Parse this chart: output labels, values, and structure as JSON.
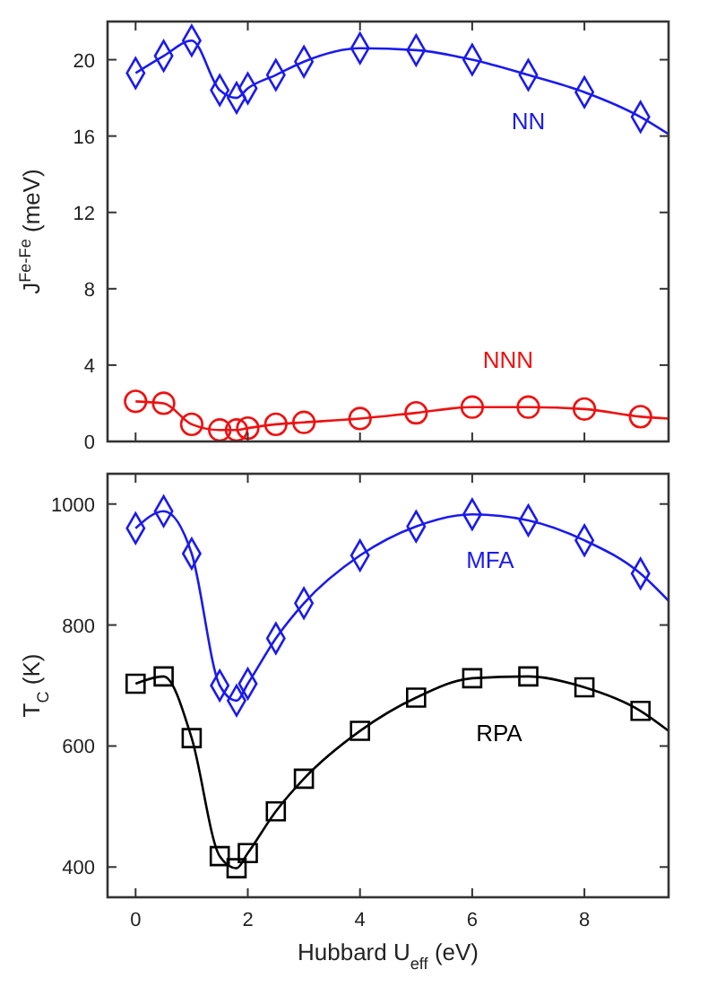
{
  "chart_data": [
    {
      "type": "scatter",
      "ylabel": "J$^{Fe-Fe}$ (meV)",
      "x": [
        0,
        0.5,
        1,
        1.5,
        1.8,
        2,
        2.5,
        3,
        4,
        5,
        6,
        7,
        8,
        9
      ],
      "xlim": [
        -0.5,
        9.5
      ],
      "xticks": [
        0,
        2,
        4,
        6,
        8
      ],
      "ylim": [
        0,
        22
      ],
      "yticks": [
        0,
        4,
        8,
        12,
        16,
        20
      ],
      "tick_labels": "y",
      "grid": false,
      "series": [
        {
          "type": "line",
          "marker": "none",
          "color": "#1a1aee",
          "x": [
            0,
            0.5,
            1,
            1.5,
            1.8,
            2,
            2.5,
            3,
            4,
            5,
            6,
            7,
            8,
            9,
            9.5
          ],
          "values": [
            19.3,
            20.2,
            21.0,
            18.4,
            18.0,
            18.5,
            19.2,
            19.9,
            20.6,
            20.5,
            20.0,
            19.2,
            18.3,
            17.0,
            16.1
          ]
        },
        {
          "marker": "diamond",
          "name": "NN",
          "color": "#1a1aee",
          "values": [
            19.3,
            20.2,
            21.0,
            18.4,
            18.0,
            18.5,
            19.2,
            19.9,
            20.6,
            20.5,
            20.0,
            19.2,
            18.3,
            17.0
          ]
        },
        {
          "type": "line",
          "marker": "none",
          "color": "#ee1111",
          "x": [
            0,
            0.5,
            1,
            1.5,
            1.8,
            2,
            2.5,
            3,
            4,
            5,
            6,
            7,
            8,
            9,
            9.5
          ],
          "values": [
            2.1,
            2.0,
            0.9,
            0.6,
            0.6,
            0.7,
            0.9,
            1.0,
            1.2,
            1.5,
            1.8,
            1.8,
            1.7,
            1.3,
            1.2
          ]
        },
        {
          "marker": "circle",
          "name": "NNN",
          "color": "#ee1111",
          "values": [
            2.1,
            2.0,
            0.9,
            0.6,
            0.6,
            0.7,
            0.9,
            1.0,
            1.2,
            1.5,
            1.8,
            1.8,
            1.7,
            1.3
          ]
        }
      ]
    },
    {
      "type": "scatter",
      "ylabel": "T$_{C}$ (K)",
      "xlabel": "Hubbard U$_{eff}$ (eV)",
      "x": [
        0,
        0.5,
        1,
        1.5,
        1.8,
        2,
        2.5,
        3,
        4,
        5,
        6,
        7,
        8,
        9
      ],
      "xlim": [
        -0.5,
        9.5
      ],
      "xticks": [
        0,
        2,
        4,
        6,
        8
      ],
      "ylim": [
        350,
        1050
      ],
      "yticks": [
        400,
        600,
        800,
        1000
      ],
      "grid": false,
      "series": [
        {
          "type": "line",
          "marker": "none",
          "color": "#1a1aee",
          "x": [
            0,
            0.5,
            1,
            1.5,
            1.8,
            2,
            2.5,
            3,
            4,
            5,
            6,
            7,
            8,
            9,
            9.5
          ],
          "values": [
            960,
            988,
            918,
            700,
            675,
            703,
            778,
            836,
            915,
            963,
            983,
            973,
            940,
            885,
            840
          ]
        },
        {
          "marker": "diamond",
          "name": "MFA",
          "color": "#1a1aee",
          "values": [
            960,
            988,
            918,
            700,
            675,
            703,
            778,
            836,
            915,
            963,
            983,
            973,
            940,
            885
          ]
        },
        {
          "type": "line",
          "marker": "none",
          "color": "#000000",
          "x": [
            0,
            0.5,
            1,
            1.5,
            1.8,
            2,
            2.5,
            3,
            4,
            5,
            6,
            7,
            8,
            9,
            9.5
          ],
          "values": [
            703,
            715,
            613,
            418,
            398,
            423,
            492,
            546,
            625,
            680,
            712,
            715,
            697,
            658,
            625
          ]
        },
        {
          "marker": "square",
          "name": "RPA",
          "color": "#000000",
          "values": [
            703,
            715,
            613,
            418,
            398,
            423,
            492,
            546,
            625,
            680,
            712,
            715,
            697,
            658
          ]
        }
      ]
    }
  ]
}
